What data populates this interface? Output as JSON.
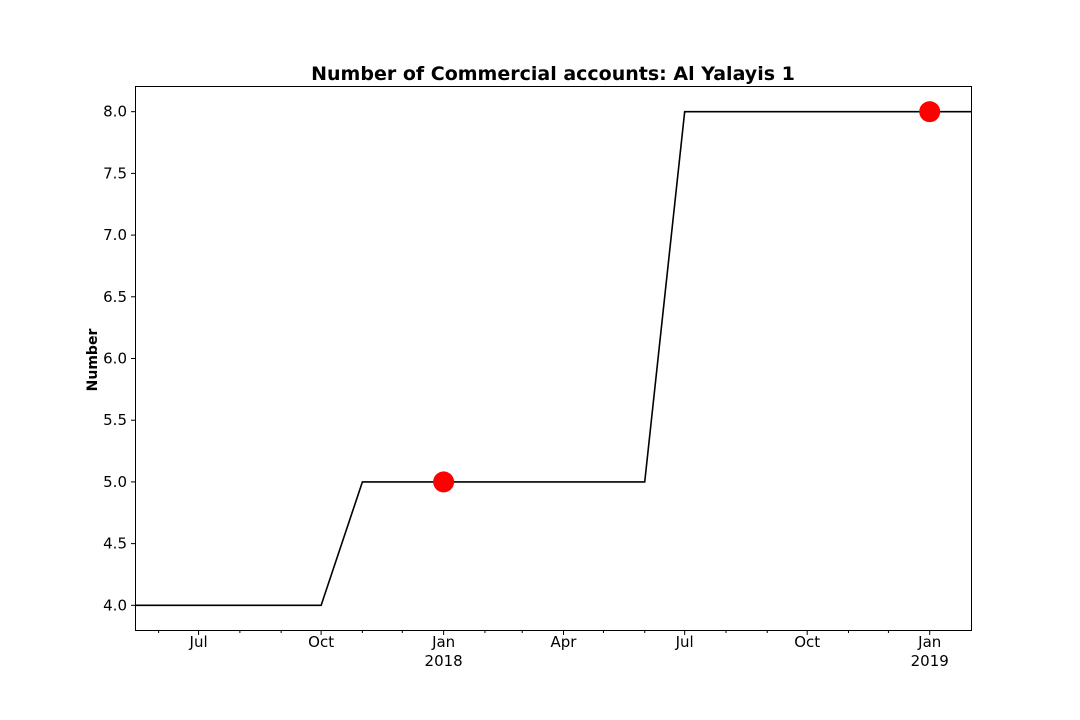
{
  "chart_data": {
    "type": "line",
    "title": "Number of Commercial accounts: Al Yalayis 1",
    "xlabel": "",
    "ylabel": "Number",
    "x_type": "date",
    "xlim": [
      "2017-05-15",
      "2019-02-01"
    ],
    "ylim": [
      3.8,
      8.2
    ],
    "grid": false,
    "series": [
      {
        "color": "#000000",
        "x": [
          "2017-05-15",
          "2017-10-01",
          "2017-11-01",
          "2018-06-01",
          "2018-07-01",
          "2019-02-01"
        ],
        "y": [
          4,
          4,
          5,
          5,
          8,
          8
        ]
      }
    ],
    "markers": {
      "color": "#ff0000",
      "x": [
        "2018-01-01",
        "2019-01-01"
      ],
      "y": [
        5,
        8
      ]
    },
    "y_ticks": [
      {
        "value": 4.0,
        "label": "4.0"
      },
      {
        "value": 4.5,
        "label": "4.5"
      },
      {
        "value": 5.0,
        "label": "5.0"
      },
      {
        "value": 5.5,
        "label": "5.5"
      },
      {
        "value": 6.0,
        "label": "6.0"
      },
      {
        "value": 6.5,
        "label": "6.5"
      },
      {
        "value": 7.0,
        "label": "7.0"
      },
      {
        "value": 7.5,
        "label": "7.5"
      },
      {
        "value": 8.0,
        "label": "8.0"
      }
    ],
    "x_major_ticks": [
      {
        "date": "2017-07-01",
        "label": "Jul",
        "sublabel": ""
      },
      {
        "date": "2017-10-01",
        "label": "Oct",
        "sublabel": ""
      },
      {
        "date": "2018-01-01",
        "label": "Jan",
        "sublabel": "2018"
      },
      {
        "date": "2018-04-01",
        "label": "Apr",
        "sublabel": ""
      },
      {
        "date": "2018-07-01",
        "label": "Jul",
        "sublabel": ""
      },
      {
        "date": "2018-10-01",
        "label": "Oct",
        "sublabel": ""
      },
      {
        "date": "2019-01-01",
        "label": "Jan",
        "sublabel": "2019"
      }
    ],
    "x_minor_ticks": [
      "2017-06-01",
      "2017-08-01",
      "2017-09-01",
      "2017-11-01",
      "2017-12-01",
      "2018-02-01",
      "2018-03-01",
      "2018-05-01",
      "2018-06-01",
      "2018-08-01",
      "2018-09-01",
      "2018-11-01",
      "2018-12-01"
    ]
  }
}
